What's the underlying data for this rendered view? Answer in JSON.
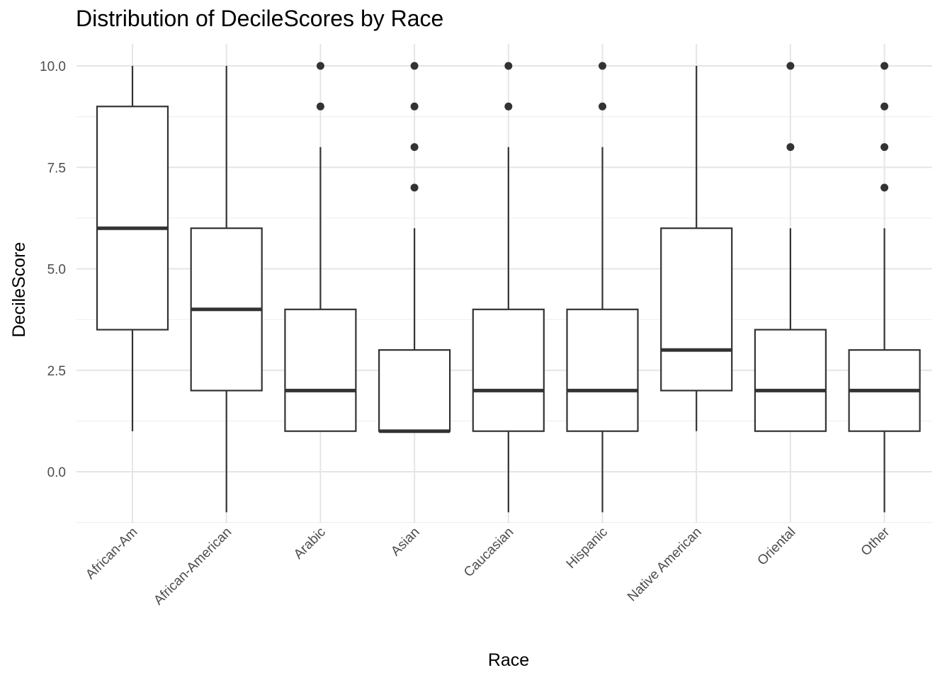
{
  "chart_data": {
    "type": "boxplot",
    "title": "Distribution of DecileScores by Race",
    "xlabel": "Race",
    "ylabel": "DecileScore",
    "ylim": [
      -1.0,
      10.5
    ],
    "yticks": [
      0.0,
      2.5,
      5.0,
      7.5,
      10.0
    ],
    "ytick_labels": [
      "0.0",
      "2.5",
      "5.0",
      "7.5",
      "10.0"
    ],
    "grid": true,
    "legend": "none",
    "colors": {
      "box_stroke": "#333333",
      "box_fill": "#ffffff",
      "grid_major": "#e5e5e5",
      "grid_minor": "#f0f0f0"
    },
    "categories": [
      "African-Am",
      "African-American",
      "Arabic",
      "Asian",
      "Caucasian",
      "Hispanic",
      "Native American",
      "Oriental",
      "Other"
    ],
    "boxes": [
      {
        "category": "African-Am",
        "min": 1,
        "q1": 3.5,
        "median": 6,
        "q3": 9,
        "max": 10,
        "outliers": []
      },
      {
        "category": "African-American",
        "min": -1,
        "q1": 2,
        "median": 4,
        "q3": 6,
        "max": 10,
        "outliers": []
      },
      {
        "category": "Arabic",
        "min": 1,
        "q1": 1,
        "median": 2,
        "q3": 4,
        "max": 8,
        "outliers": [
          9,
          10
        ]
      },
      {
        "category": "Asian",
        "min": 1,
        "q1": 1,
        "median": 1,
        "q3": 3,
        "max": 6,
        "outliers": [
          7,
          8,
          9,
          10
        ]
      },
      {
        "category": "Caucasian",
        "min": -1,
        "q1": 1,
        "median": 2,
        "q3": 4,
        "max": 8,
        "outliers": [
          9,
          10
        ]
      },
      {
        "category": "Hispanic",
        "min": -1,
        "q1": 1,
        "median": 2,
        "q3": 4,
        "max": 8,
        "outliers": [
          9,
          10
        ]
      },
      {
        "category": "Native American",
        "min": 1,
        "q1": 2,
        "median": 3,
        "q3": 6,
        "max": 10,
        "outliers": []
      },
      {
        "category": "Oriental",
        "min": 1,
        "q1": 1,
        "median": 2,
        "q3": 3.5,
        "max": 6,
        "outliers": [
          8,
          10
        ]
      },
      {
        "category": "Other",
        "min": -1,
        "q1": 1,
        "median": 2,
        "q3": 3,
        "max": 6,
        "outliers": [
          7,
          8,
          9,
          10
        ]
      }
    ]
  }
}
